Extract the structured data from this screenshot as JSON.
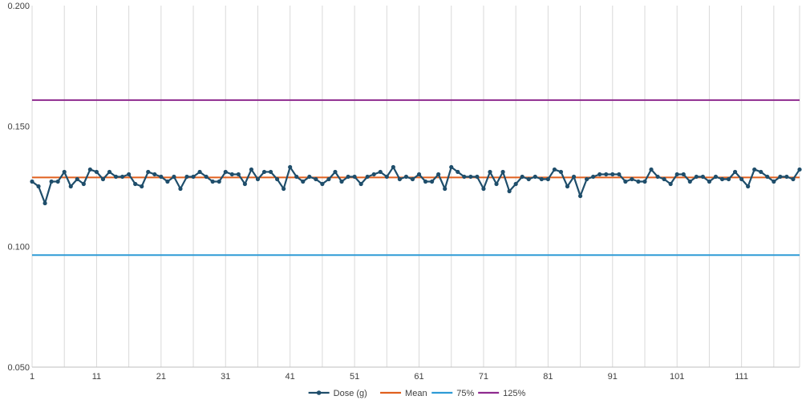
{
  "chart_data": {
    "type": "line",
    "title": "",
    "xlabel": "",
    "ylabel": "",
    "ylim": [
      0.05,
      0.2
    ],
    "y_ticks": [
      "0.050",
      "0.100",
      "0.150",
      "0.200"
    ],
    "y_tick_values": [
      0.05,
      0.1,
      0.15,
      0.2
    ],
    "x_range": [
      1,
      120
    ],
    "x_ticks": [
      "1",
      "11",
      "21",
      "31",
      "41",
      "51",
      "61",
      "71",
      "81",
      "91",
      "101",
      "111"
    ],
    "x_tick_values": [
      1,
      11,
      21,
      31,
      41,
      51,
      61,
      71,
      81,
      91,
      101,
      111
    ],
    "grid": "vertical",
    "legend_position": "bottom",
    "series": [
      {
        "name": "Dose (g)",
        "color": "#1f4e6b",
        "markers": true,
        "values": [
          0.127,
          0.125,
          0.118,
          0.127,
          0.127,
          0.131,
          0.125,
          0.128,
          0.126,
          0.132,
          0.131,
          0.128,
          0.131,
          0.129,
          0.129,
          0.13,
          0.126,
          0.125,
          0.131,
          0.13,
          0.129,
          0.127,
          0.129,
          0.124,
          0.129,
          0.129,
          0.131,
          0.129,
          0.127,
          0.127,
          0.131,
          0.13,
          0.13,
          0.126,
          0.132,
          0.128,
          0.131,
          0.131,
          0.128,
          0.124,
          0.133,
          0.129,
          0.127,
          0.129,
          0.128,
          0.126,
          0.128,
          0.131,
          0.127,
          0.129,
          0.129,
          0.126,
          0.129,
          0.13,
          0.131,
          0.129,
          0.133,
          0.128,
          0.129,
          0.128,
          0.13,
          0.127,
          0.127,
          0.13,
          0.124,
          0.133,
          0.131,
          0.129,
          0.129,
          0.129,
          0.124,
          0.131,
          0.126,
          0.131,
          0.123,
          0.126,
          0.129,
          0.128,
          0.129,
          0.128,
          0.128,
          0.132,
          0.131,
          0.125,
          0.129,
          0.121,
          0.128,
          0.129,
          0.13,
          0.13,
          0.13,
          0.13,
          0.127,
          0.128,
          0.127,
          0.127,
          0.132,
          0.129,
          0.128,
          0.126,
          0.13,
          0.13,
          0.127,
          0.129,
          0.129,
          0.127,
          0.129,
          0.128,
          0.128,
          0.131,
          0.128,
          0.125,
          0.132,
          0.131,
          0.129,
          0.127,
          0.129,
          0.129,
          0.128,
          0.132
        ]
      },
      {
        "name": "Mean",
        "color": "#e0601e",
        "constant": 0.1287
      },
      {
        "name": "75%",
        "color": "#2e9bd6",
        "constant": 0.0965
      },
      {
        "name": "125%",
        "color": "#8e2a8e",
        "constant": 0.1608
      }
    ]
  }
}
